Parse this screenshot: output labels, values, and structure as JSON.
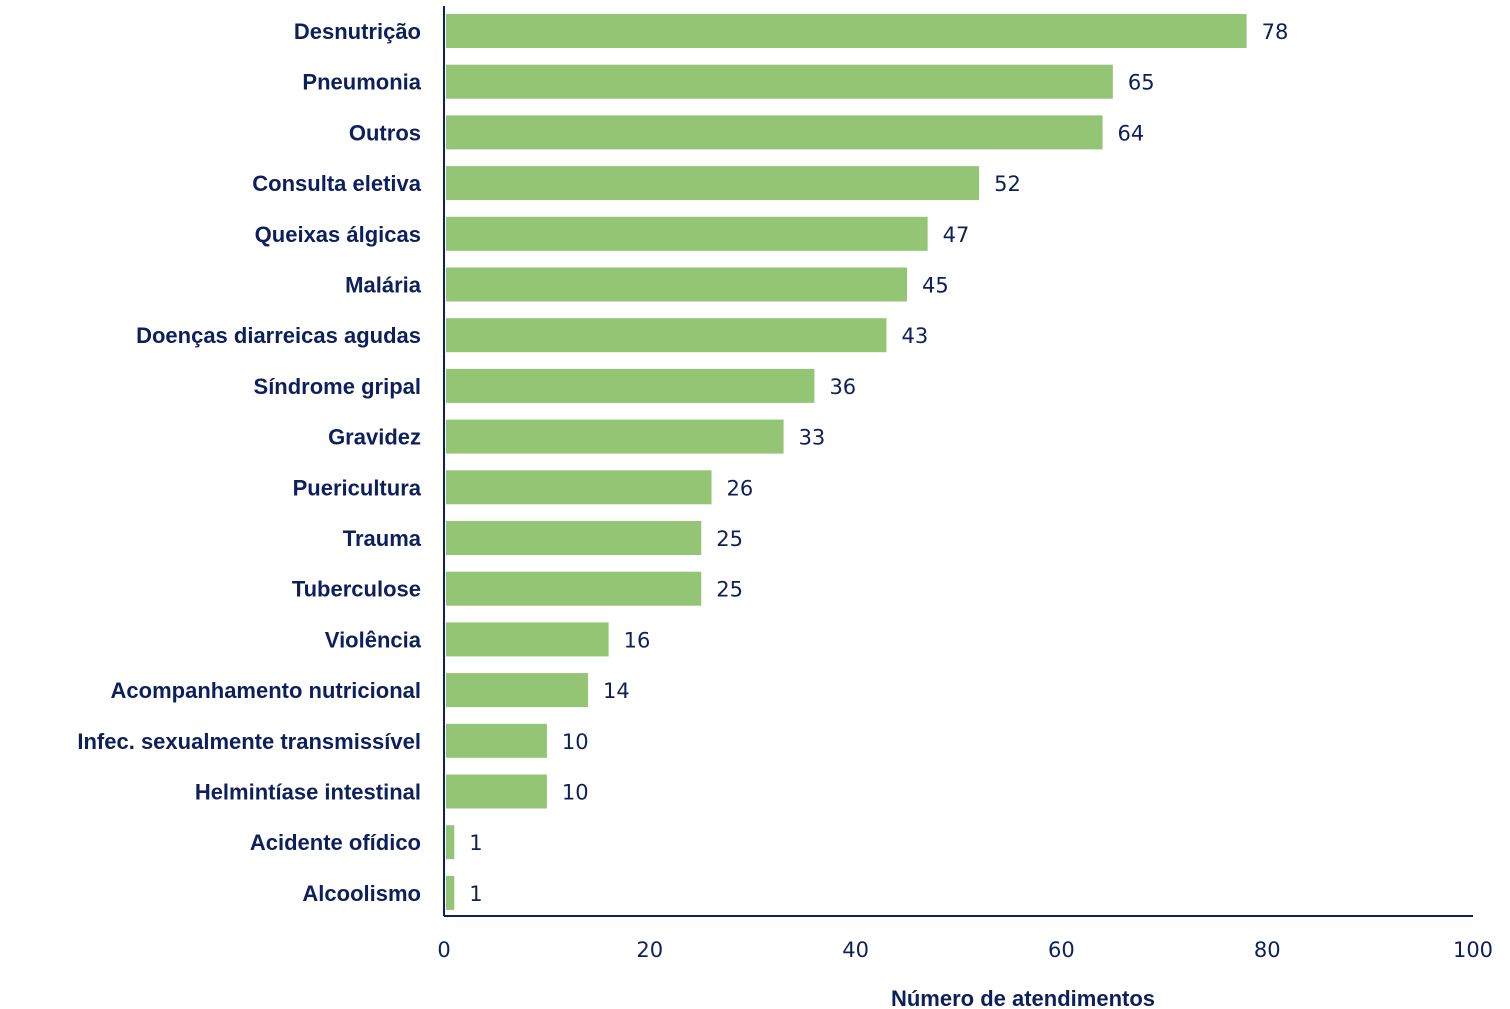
{
  "chart_data": {
    "type": "bar",
    "orientation": "horizontal",
    "categories": [
      "Desnutrição",
      "Pneumonia",
      "Outros",
      "Consulta eletiva",
      "Queixas álgicas",
      "Malária",
      "Doenças diarreicas agudas",
      "Síndrome gripal",
      "Gravidez",
      "Puericultura",
      "Trauma",
      "Tuberculose",
      "Violência",
      "Acompanhamento nutricional",
      "Infec. sexualmente transmissível",
      "Helmintíase intestinal",
      "Acidente ofídico",
      "Alcoolismo"
    ],
    "values": [
      78,
      65,
      64,
      52,
      47,
      45,
      43,
      36,
      33,
      26,
      25,
      25,
      16,
      14,
      10,
      10,
      1,
      1
    ],
    "title": "",
    "xlabel": "Número de atendimentos",
    "ylabel": "",
    "xlim": [
      0,
      100
    ],
    "xticks": [
      "0",
      "20",
      "40",
      "60",
      "80",
      "100"
    ],
    "grid": false,
    "legend": "none",
    "data_labels": true
  },
  "colors": {
    "bar": "#93c575",
    "text": "#0d1f5c",
    "axis": "#0d1f5c"
  }
}
